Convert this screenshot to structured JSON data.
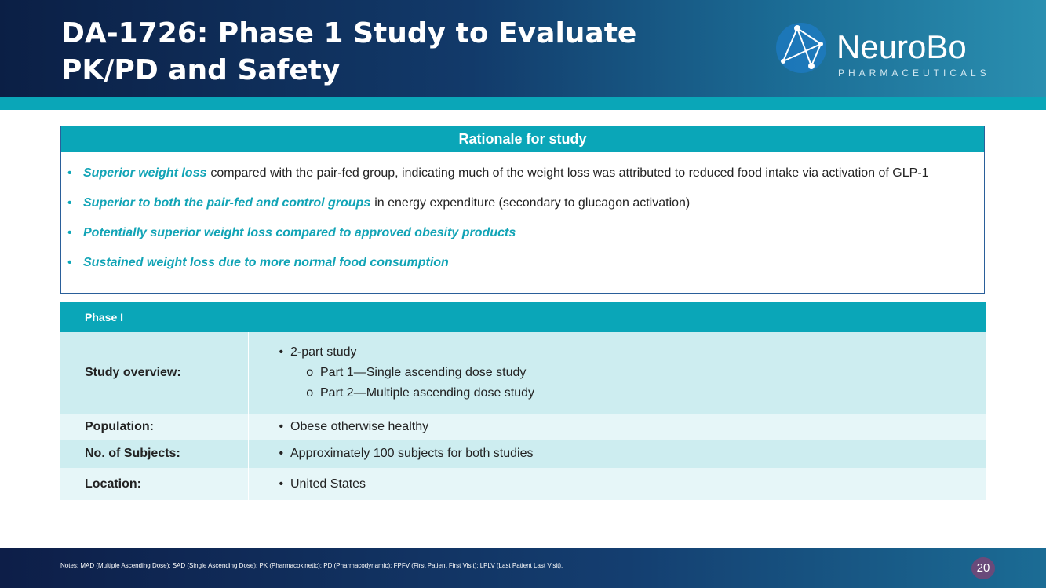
{
  "header": {
    "title_line1": "DA-1726: Phase 1 Study to Evaluate",
    "title_line2": "PK/PD and Safety",
    "logo_name": "NeuroBo",
    "logo_sub": "PHARMACEUTICALS"
  },
  "rationale": {
    "title": "Rationale for study",
    "items": [
      {
        "emphasis": "Superior weight loss",
        "text": "compared with the pair-fed group, indicating much of the weight loss was attributed to reduced food intake via activation of GLP-1"
      },
      {
        "emphasis": "Superior to both the pair-fed and control groups",
        "text": "in energy expenditure (secondary to glucagon activation)"
      },
      {
        "emphasis": "Potentially superior weight loss compared to approved obesity products"
      },
      {
        "emphasis": "Sustained weight loss due to more normal food consumption"
      }
    ]
  },
  "table": {
    "header": "Phase I",
    "rows": [
      {
        "label": "Study overview:",
        "items": [
          "2-part study"
        ],
        "subitems": [
          "Part 1—Single ascending dose study",
          "Part 2—Multiple ascending dose study"
        ]
      },
      {
        "label": "Population:",
        "items": [
          "Obese otherwise healthy"
        ]
      },
      {
        "label": "No. of Subjects:",
        "items": [
          "Approximately 100 subjects for both studies"
        ]
      },
      {
        "label": "Location:",
        "items": [
          "United States"
        ]
      }
    ]
  },
  "footer": {
    "notes": "Notes: MAD (Multiple Ascending Dose); SAD (Single Ascending Dose); PK (Pharmacokinetic); PD (Pharmacodynamic); FPFV (First Patient First Visit); LPLV (Last Patient Last Visit).",
    "page": "20"
  }
}
